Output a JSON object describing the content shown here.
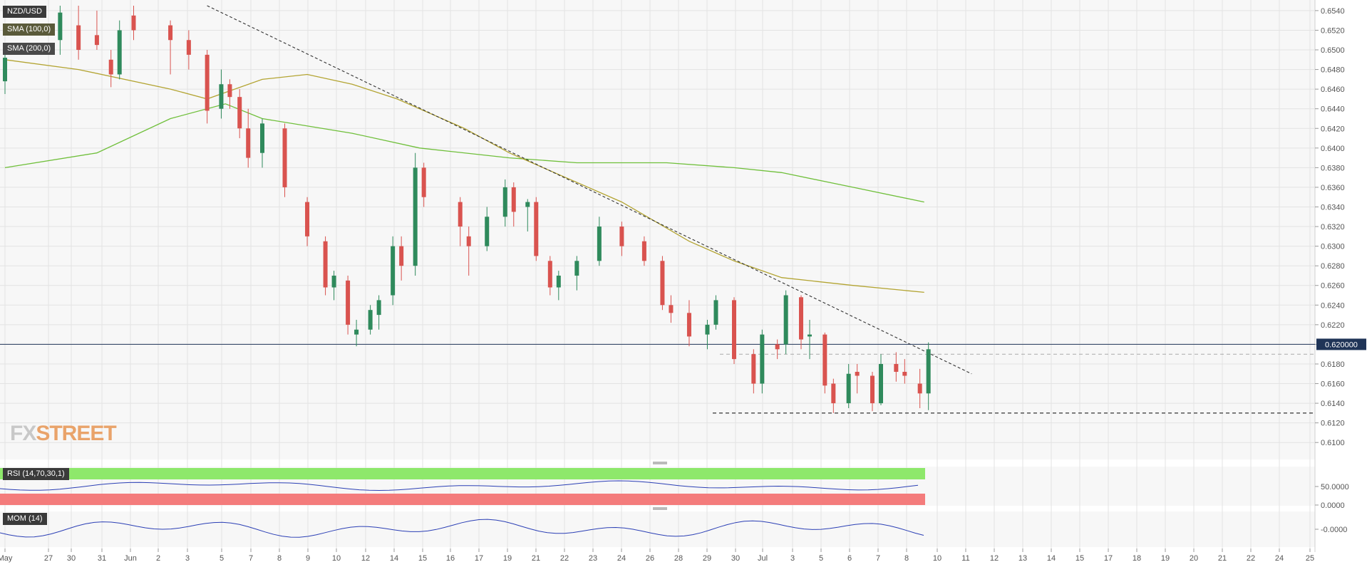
{
  "symbol": "NZD/USD",
  "indicators": {
    "sma100": "SMA (100,0)",
    "sma200": "SMA (200,0)",
    "rsi": "RSI (14,70,30,1)",
    "mom": "MOM (14)"
  },
  "logo": {
    "fx": "FX",
    "street": "STREET"
  },
  "colors": {
    "up": "#2f8a5c",
    "down": "#d9534f",
    "sma100": "#b3a432",
    "sma200": "#6fbf3a",
    "rsi_line": "#2b3fb5",
    "rsi_over": "#8ee86b",
    "rsi_under": "#f47c7c",
    "grid": "#e3e3e3",
    "panel_bg": "#f7f7f7",
    "axis_text": "#555555",
    "price_badge": "#1f3457"
  },
  "chart_data": {
    "type": "candlestick",
    "title": "NZD/USD",
    "ylim": [
      0.609,
      0.6545
    ],
    "y_ticks": [
      "0.6540",
      "0.6520",
      "0.6500",
      "0.6480",
      "0.6460",
      "0.6440",
      "0.6420",
      "0.6400",
      "0.6380",
      "0.6360",
      "0.6340",
      "0.6320",
      "0.6300",
      "0.6280",
      "0.6260",
      "0.6240",
      "0.6220",
      "0.6200",
      "0.6180",
      "0.6160",
      "0.6140",
      "0.6120",
      "0.6100"
    ],
    "x_ticks": [
      "May",
      "27",
      "30",
      "31",
      "Jun",
      "2",
      "3",
      "5",
      "7",
      "8",
      "9",
      "10",
      "12",
      "14",
      "15",
      "16",
      "17",
      "19",
      "21",
      "22",
      "23",
      "24",
      "26",
      "28",
      "29",
      "30",
      "Jul",
      "3",
      "5",
      "6",
      "7",
      "8",
      "10",
      "11",
      "12",
      "13",
      "14",
      "15",
      "17",
      "18",
      "19",
      "20",
      "21",
      "22",
      "24",
      "25"
    ],
    "current_price": "0.620000",
    "candles": [
      {
        "x": "May 27",
        "o": 0.6468,
        "h": 0.65,
        "l": 0.6455,
        "c": 0.6492
      },
      {
        "x": "May 30",
        "o": 0.651,
        "h": 0.6545,
        "l": 0.6495,
        "c": 0.6538
      },
      {
        "x": "May 31",
        "o": 0.6525,
        "h": 0.6545,
        "l": 0.649,
        "c": 0.65
      },
      {
        "x": "Jun 1",
        "o": 0.6515,
        "h": 0.654,
        "l": 0.65,
        "c": 0.6505
      },
      {
        "x": "Jun 2",
        "o": 0.649,
        "h": 0.65,
        "l": 0.6462,
        "c": 0.6475
      },
      {
        "x": "Jun 2",
        "o": 0.6475,
        "h": 0.653,
        "l": 0.647,
        "c": 0.652
      },
      {
        "x": "Jun 3",
        "o": 0.6535,
        "h": 0.6545,
        "l": 0.651,
        "c": 0.652
      },
      {
        "x": "Jun 5",
        "o": 0.6525,
        "h": 0.653,
        "l": 0.6475,
        "c": 0.651
      },
      {
        "x": "Jun 6",
        "o": 0.651,
        "h": 0.652,
        "l": 0.648,
        "c": 0.6495
      },
      {
        "x": "Jun 7",
        "o": 0.6495,
        "h": 0.65,
        "l": 0.6425,
        "c": 0.6438
      },
      {
        "x": "Jun 8",
        "o": 0.644,
        "h": 0.648,
        "l": 0.643,
        "c": 0.6465
      },
      {
        "x": "Jun 8",
        "o": 0.6465,
        "h": 0.647,
        "l": 0.644,
        "c": 0.6452
      },
      {
        "x": "Jun 9",
        "o": 0.6452,
        "h": 0.646,
        "l": 0.641,
        "c": 0.642
      },
      {
        "x": "Jun 9",
        "o": 0.642,
        "h": 0.644,
        "l": 0.638,
        "c": 0.639
      },
      {
        "x": "Jun 10",
        "o": 0.6395,
        "h": 0.643,
        "l": 0.638,
        "c": 0.6425
      },
      {
        "x": "Jun 11",
        "o": 0.642,
        "h": 0.6425,
        "l": 0.635,
        "c": 0.636
      },
      {
        "x": "Jun 12",
        "o": 0.6345,
        "h": 0.635,
        "l": 0.63,
        "c": 0.631
      },
      {
        "x": "Jun 13",
        "o": 0.6305,
        "h": 0.631,
        "l": 0.625,
        "c": 0.6258
      },
      {
        "x": "Jun 13",
        "o": 0.6258,
        "h": 0.6275,
        "l": 0.6245,
        "c": 0.627
      },
      {
        "x": "Jun 14",
        "o": 0.6265,
        "h": 0.627,
        "l": 0.621,
        "c": 0.622
      },
      {
        "x": "Jun 14",
        "o": 0.621,
        "h": 0.6225,
        "l": 0.6198,
        "c": 0.6215
      },
      {
        "x": "Jun 15",
        "o": 0.6215,
        "h": 0.624,
        "l": 0.621,
        "c": 0.6235
      },
      {
        "x": "Jun 15",
        "o": 0.623,
        "h": 0.625,
        "l": 0.6215,
        "c": 0.6245
      },
      {
        "x": "Jun 16",
        "o": 0.625,
        "h": 0.631,
        "l": 0.624,
        "c": 0.63
      },
      {
        "x": "Jun 16",
        "o": 0.63,
        "h": 0.631,
        "l": 0.6265,
        "c": 0.628
      },
      {
        "x": "Jun 17",
        "o": 0.628,
        "h": 0.6395,
        "l": 0.627,
        "c": 0.638
      },
      {
        "x": "Jun 17",
        "o": 0.638,
        "h": 0.6385,
        "l": 0.634,
        "c": 0.635
      },
      {
        "x": "Jun 19",
        "o": 0.6345,
        "h": 0.635,
        "l": 0.63,
        "c": 0.632
      },
      {
        "x": "Jun 19",
        "o": 0.631,
        "h": 0.632,
        "l": 0.627,
        "c": 0.63
      },
      {
        "x": "Jun 20",
        "o": 0.63,
        "h": 0.634,
        "l": 0.6295,
        "c": 0.633
      },
      {
        "x": "Jun 21",
        "o": 0.633,
        "h": 0.6368,
        "l": 0.632,
        "c": 0.636
      },
      {
        "x": "Jun 21",
        "o": 0.636,
        "h": 0.6365,
        "l": 0.632,
        "c": 0.6335
      },
      {
        "x": "Jun 22",
        "o": 0.634,
        "h": 0.6348,
        "l": 0.6315,
        "c": 0.6345
      },
      {
        "x": "Jun 22",
        "o": 0.6345,
        "h": 0.635,
        "l": 0.6285,
        "c": 0.629
      },
      {
        "x": "Jun 23",
        "o": 0.6285,
        "h": 0.629,
        "l": 0.625,
        "c": 0.6258
      },
      {
        "x": "Jun 23",
        "o": 0.6258,
        "h": 0.6275,
        "l": 0.6245,
        "c": 0.627
      },
      {
        "x": "Jun 24",
        "o": 0.627,
        "h": 0.629,
        "l": 0.6255,
        "c": 0.6285
      },
      {
        "x": "Jun 25",
        "o": 0.6285,
        "h": 0.633,
        "l": 0.628,
        "c": 0.632
      },
      {
        "x": "Jun 26",
        "o": 0.632,
        "h": 0.6325,
        "l": 0.629,
        "c": 0.63
      },
      {
        "x": "Jun 27",
        "o": 0.6305,
        "h": 0.631,
        "l": 0.628,
        "c": 0.6285
      },
      {
        "x": "Jun 28",
        "o": 0.6285,
        "h": 0.629,
        "l": 0.6235,
        "c": 0.624
      },
      {
        "x": "Jun 28",
        "o": 0.624,
        "h": 0.625,
        "l": 0.6222,
        "c": 0.6232
      },
      {
        "x": "Jun 29",
        "o": 0.6232,
        "h": 0.6245,
        "l": 0.6198,
        "c": 0.6208
      },
      {
        "x": "Jun 30",
        "o": 0.621,
        "h": 0.6225,
        "l": 0.6195,
        "c": 0.622
      },
      {
        "x": "Jun 30",
        "o": 0.622,
        "h": 0.625,
        "l": 0.6215,
        "c": 0.6245
      },
      {
        "x": "Jul 1",
        "o": 0.6245,
        "h": 0.6248,
        "l": 0.618,
        "c": 0.6185
      },
      {
        "x": "Jul 2",
        "o": 0.619,
        "h": 0.6195,
        "l": 0.615,
        "c": 0.616
      },
      {
        "x": "Jul 2",
        "o": 0.616,
        "h": 0.6215,
        "l": 0.615,
        "c": 0.621
      },
      {
        "x": "Jul 3",
        "o": 0.62,
        "h": 0.6205,
        "l": 0.6185,
        "c": 0.6195
      },
      {
        "x": "Jul 3",
        "o": 0.62,
        "h": 0.6255,
        "l": 0.619,
        "c": 0.625
      },
      {
        "x": "Jul 4",
        "o": 0.6248,
        "h": 0.625,
        "l": 0.6195,
        "c": 0.6205
      },
      {
        "x": "Jul 4",
        "o": 0.6208,
        "h": 0.6225,
        "l": 0.6185,
        "c": 0.621
      },
      {
        "x": "Jul 5",
        "o": 0.621,
        "h": 0.6212,
        "l": 0.615,
        "c": 0.6158
      },
      {
        "x": "Jul 5",
        "o": 0.616,
        "h": 0.6165,
        "l": 0.613,
        "c": 0.614
      },
      {
        "x": "Jul 6",
        "o": 0.614,
        "h": 0.618,
        "l": 0.6135,
        "c": 0.617
      },
      {
        "x": "Jul 6",
        "o": 0.6172,
        "h": 0.618,
        "l": 0.615,
        "c": 0.6168
      },
      {
        "x": "Jul 7",
        "o": 0.6168,
        "h": 0.6172,
        "l": 0.6132,
        "c": 0.614
      },
      {
        "x": "Jul 7",
        "o": 0.614,
        "h": 0.619,
        "l": 0.6138,
        "c": 0.618
      },
      {
        "x": "Jul 8",
        "o": 0.618,
        "h": 0.6192,
        "l": 0.6162,
        "c": 0.6172
      },
      {
        "x": "Jul 8",
        "o": 0.6172,
        "h": 0.6185,
        "l": 0.616,
        "c": 0.6168
      },
      {
        "x": "Jul 9",
        "o": 0.616,
        "h": 0.6175,
        "l": 0.6135,
        "c": 0.615
      },
      {
        "x": "Jul 9",
        "o": 0.615,
        "h": 0.6202,
        "l": 0.6133,
        "c": 0.6195
      }
    ],
    "sma100": [
      {
        "x": "May 27",
        "y": 0.649
      },
      {
        "x": "May 31",
        "y": 0.648
      },
      {
        "x": "Jun 5",
        "y": 0.646
      },
      {
        "x": "Jun 7",
        "y": 0.645
      },
      {
        "x": "Jun 10",
        "y": 0.647
      },
      {
        "x": "Jun 12",
        "y": 0.6475
      },
      {
        "x": "Jun 14",
        "y": 0.6465
      },
      {
        "x": "Jun 16",
        "y": 0.645
      },
      {
        "x": "Jun 19",
        "y": 0.642
      },
      {
        "x": "Jun 21",
        "y": 0.6395
      },
      {
        "x": "Jun 23",
        "y": 0.6375
      },
      {
        "x": "Jun 26",
        "y": 0.6345
      },
      {
        "x": "Jun 29",
        "y": 0.6305
      },
      {
        "x": "Jul 1",
        "y": 0.6285
      },
      {
        "x": "Jul 3",
        "y": 0.6268
      },
      {
        "x": "Jul 6",
        "y": 0.626
      },
      {
        "x": "Jul 9",
        "y": 0.6253
      }
    ],
    "sma200": [
      {
        "x": "May 27",
        "y": 0.638
      },
      {
        "x": "Jun 1",
        "y": 0.6395
      },
      {
        "x": "Jun 5",
        "y": 0.643
      },
      {
        "x": "Jun 8",
        "y": 0.6445
      },
      {
        "x": "Jun 10",
        "y": 0.643
      },
      {
        "x": "Jun 14",
        "y": 0.6415
      },
      {
        "x": "Jun 17",
        "y": 0.64
      },
      {
        "x": "Jun 21",
        "y": 0.639
      },
      {
        "x": "Jun 24",
        "y": 0.6385
      },
      {
        "x": "Jun 28",
        "y": 0.6385
      },
      {
        "x": "Jul 1",
        "y": 0.638
      },
      {
        "x": "Jul 3",
        "y": 0.6375
      },
      {
        "x": "Jul 6",
        "y": 0.636
      },
      {
        "x": "Jul 9",
        "y": 0.6345
      }
    ],
    "trendline": [
      {
        "x": "Jun 7",
        "y": 0.6545
      },
      {
        "x": "Jul 11",
        "y": 0.617
      }
    ],
    "support_levels": [
      0.619,
      0.613
    ],
    "rsi_panel": {
      "label": "RSI (14,70,30,1)",
      "ticks": [
        "50.0000",
        "0.0000"
      ]
    },
    "mom_panel": {
      "label": "MOM (14)",
      "ticks": [
        "-0.0000"
      ]
    }
  }
}
